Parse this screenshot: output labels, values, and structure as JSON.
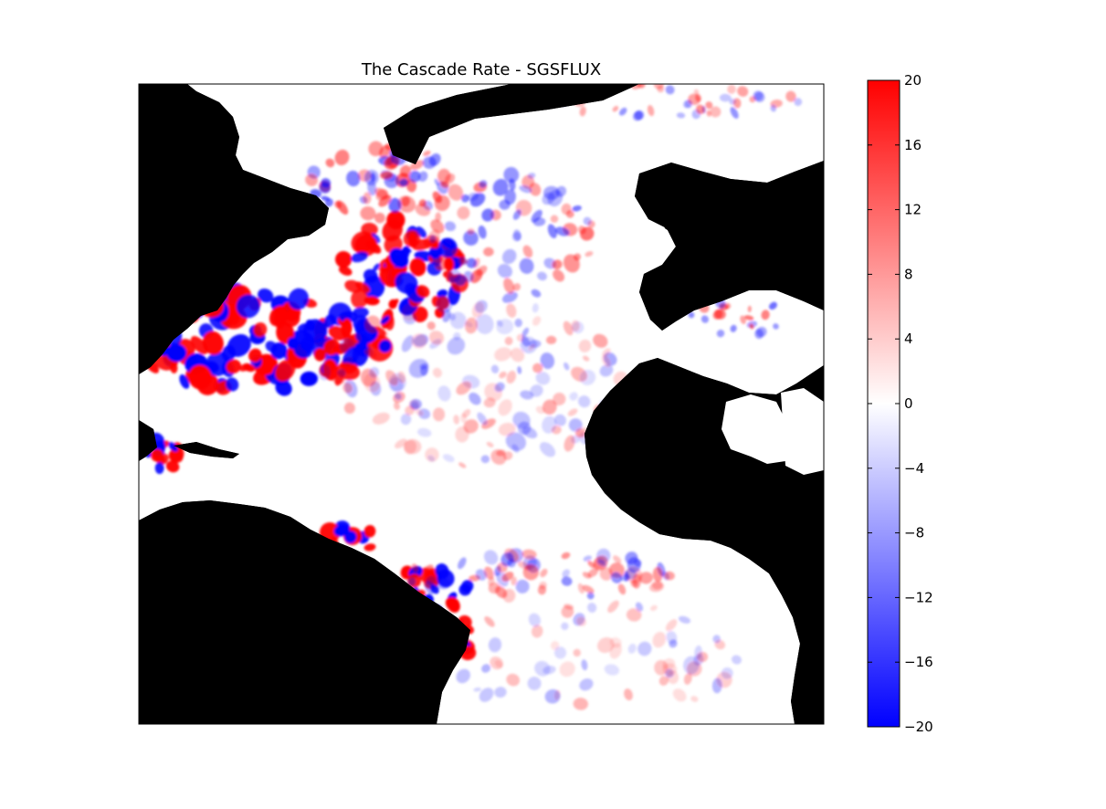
{
  "chart_data": {
    "type": "heatmap",
    "title": "The Cascade Rate - SGSFLUX",
    "xlabel": "",
    "ylabel": "",
    "colorbar": {
      "min": -20,
      "max": 20,
      "ticks": [
        -20,
        -16,
        -12,
        -8,
        -4,
        0,
        4,
        8,
        12,
        16,
        20
      ],
      "tick_labels": [
        "−20",
        "−16",
        "−12",
        "−8",
        "−4",
        "0",
        "4",
        "8",
        "12",
        "16",
        "20"
      ],
      "colormap": "bwr",
      "low_color": "#0000ff",
      "mid_color": "#ffffff",
      "high_color": "#ff0000"
    },
    "land_color": "#000000",
    "grid": false,
    "legend": "none"
  }
}
